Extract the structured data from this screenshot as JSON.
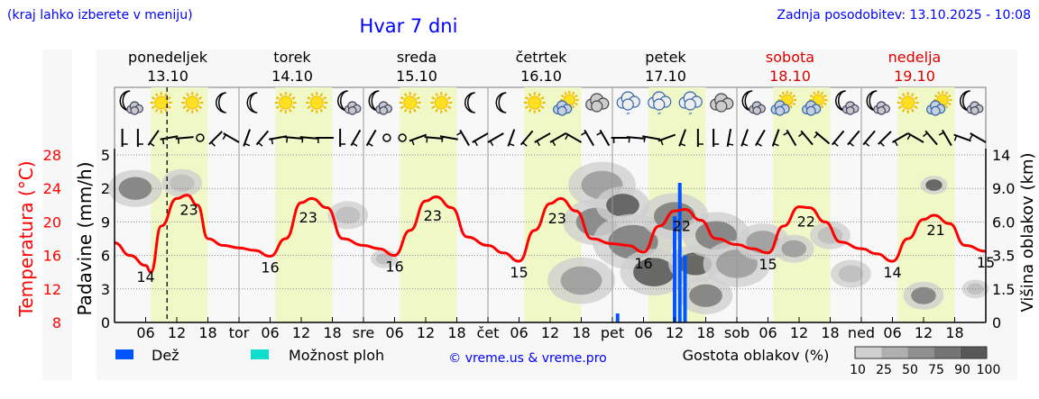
{
  "header": {
    "hint": "(kraj lahko izberete v meniju)",
    "title": "Hvar 7 dni",
    "updated": "Zadnja posodobitev: 13.10.2025 - 10:08"
  },
  "colors": {
    "temp": "#ff0000",
    "rain": "#0055ff",
    "showers": "#11ddcc",
    "link": "#0000ff",
    "day_band": "#f0f8c8",
    "weekend": "#dd0000"
  },
  "days": [
    {
      "name": "ponedeljek",
      "date": "13.10",
      "weekend": false
    },
    {
      "name": "torek",
      "date": "14.10",
      "weekend": false
    },
    {
      "name": "sreda",
      "date": "15.10",
      "weekend": false
    },
    {
      "name": "četrtek",
      "date": "16.10",
      "weekend": false
    },
    {
      "name": "petek",
      "date": "17.10",
      "weekend": false
    },
    {
      "name": "sobota",
      "date": "18.10",
      "weekend": true
    },
    {
      "name": "nedelja",
      "date": "19.10",
      "weekend": true
    }
  ],
  "chart_data": {
    "type": "line",
    "title": "Hvar 7 dni",
    "x_unit": "hours from Mon 13.10 00:00",
    "xlim": [
      0,
      168
    ],
    "now_hour": 10.13,
    "x_ticks": [
      "06",
      "12",
      "18",
      "tor",
      "06",
      "12",
      "18",
      "sre",
      "06",
      "12",
      "18",
      "čet",
      "06",
      "12",
      "18",
      "pet",
      "06",
      "12",
      "18",
      "sob",
      "06",
      "12",
      "18",
      "ned",
      "06",
      "12",
      "18"
    ],
    "daylight": [
      [
        7,
        18
      ],
      [
        31,
        42
      ],
      [
        55,
        66
      ],
      [
        79,
        90
      ],
      [
        103,
        114
      ],
      [
        127,
        138
      ],
      [
        151,
        162
      ]
    ],
    "temperature": {
      "label": "Temperatura (°C)",
      "ylim": [
        8,
        28
      ],
      "ticks": [
        "8",
        "12",
        "16",
        "20",
        "24",
        "28"
      ],
      "points": [
        [
          0,
          17.5
        ],
        [
          3,
          16
        ],
        [
          6,
          14.8
        ],
        [
          7,
          14
        ],
        [
          9,
          19.5
        ],
        [
          12,
          22.8
        ],
        [
          14,
          23.2
        ],
        [
          16,
          22
        ],
        [
          18,
          18
        ],
        [
          21,
          17.2
        ],
        [
          24,
          16.9
        ],
        [
          27,
          16.6
        ],
        [
          30,
          15.9
        ],
        [
          33,
          18
        ],
        [
          36,
          22.3
        ],
        [
          38,
          22.8
        ],
        [
          41,
          21.7
        ],
        [
          44,
          18
        ],
        [
          48,
          17.2
        ],
        [
          51,
          16.8
        ],
        [
          54,
          16
        ],
        [
          57,
          19
        ],
        [
          60,
          22.5
        ],
        [
          62,
          23
        ],
        [
          65,
          21.7
        ],
        [
          68,
          18.2
        ],
        [
          72,
          17.2
        ],
        [
          75,
          16.3
        ],
        [
          78,
          15.3
        ],
        [
          81,
          19
        ],
        [
          84,
          22.2
        ],
        [
          86,
          22.8
        ],
        [
          89,
          21.3
        ],
        [
          92,
          18
        ],
        [
          96,
          17.4
        ],
        [
          99,
          17.2
        ],
        [
          102,
          16.4
        ],
        [
          105,
          19.5
        ],
        [
          108,
          21.3
        ],
        [
          110,
          21.5
        ],
        [
          113,
          20.2
        ],
        [
          116,
          18
        ],
        [
          120,
          17.3
        ],
        [
          123,
          16.8
        ],
        [
          126,
          16.3
        ],
        [
          129,
          19.5
        ],
        [
          132,
          21.8
        ],
        [
          134,
          21.7
        ],
        [
          137,
          20
        ],
        [
          140,
          17.6
        ],
        [
          144,
          16.8
        ],
        [
          147,
          16.2
        ],
        [
          150,
          15.3
        ],
        [
          153,
          18
        ],
        [
          156,
          20.3
        ],
        [
          158,
          20.8
        ],
        [
          161,
          19.8
        ],
        [
          164,
          17.2
        ],
        [
          168,
          16.5
        ]
      ],
      "labels": [
        [
          6,
          "14"
        ],
        [
          14,
          "23"
        ],
        [
          30,
          "16"
        ],
        [
          37,
          "23"
        ],
        [
          54,
          "16"
        ],
        [
          61,
          "23"
        ],
        [
          78,
          "15"
        ],
        [
          85,
          "23"
        ],
        [
          102,
          "16"
        ],
        [
          109,
          "22"
        ],
        [
          126,
          "15"
        ],
        [
          133,
          "22"
        ],
        [
          150,
          "14"
        ],
        [
          158,
          "21"
        ],
        [
          168,
          "15"
        ]
      ]
    },
    "precipitation": {
      "label": "Padavine (mm/h)",
      "ylim": [
        0,
        15
      ],
      "ticks": [
        "0",
        "3",
        "6",
        "9",
        "2",
        "5"
      ],
      "bars": [
        [
          97,
          0.8
        ],
        [
          108,
          9.5
        ],
        [
          109,
          12.5
        ],
        [
          110,
          6
        ]
      ]
    },
    "clouds": {
      "label": "Višina oblakov (km)",
      "ticks": [
        "0",
        "1.5",
        "3.5",
        "6.0",
        "9.0",
        "14"
      ],
      "tick_values": [
        0,
        1.5,
        3.5,
        6.0,
        9.0,
        14
      ],
      "patches": [
        [
          4,
          9,
          75,
          4
        ],
        [
          13,
          9.8,
          25,
          3
        ],
        [
          45,
          6.6,
          25,
          3
        ],
        [
          52,
          3.3,
          25,
          2
        ],
        [
          94,
          9.5,
          50,
          5
        ],
        [
          93,
          6,
          70,
          5
        ],
        [
          98,
          7.5,
          90,
          4
        ],
        [
          100,
          4.5,
          75,
          6
        ],
        [
          104,
          2.5,
          90,
          5
        ],
        [
          108,
          6.5,
          75,
          5
        ],
        [
          112,
          3,
          90,
          4
        ],
        [
          116,
          5,
          75,
          5
        ],
        [
          114,
          1.2,
          75,
          4
        ],
        [
          90,
          2,
          50,
          5
        ],
        [
          120,
          3,
          50,
          5
        ],
        [
          125,
          4.5,
          50,
          4
        ],
        [
          131,
          4,
          50,
          3
        ],
        [
          138,
          5,
          25,
          3
        ],
        [
          142,
          2.4,
          25,
          3
        ],
        [
          158,
          9.5,
          90,
          2
        ],
        [
          156,
          1.2,
          75,
          3
        ],
        [
          166,
          1.5,
          25,
          2
        ]
      ]
    },
    "wind_dirs": [
      0,
      0,
      35,
      80,
      85,
      -1,
      45,
      120,
      20,
      40,
      80,
      95,
      95,
      90,
      0,
      30,
      30,
      -1,
      -1,
      70,
      95,
      100,
      150,
      60,
      60,
      20,
      40,
      60,
      60,
      120,
      150,
      150,
      90,
      95,
      100,
      70,
      20,
      0,
      0,
      10,
      20,
      30,
      20,
      150,
      140,
      130,
      40,
      40,
      40,
      45,
      60,
      120,
      140,
      150,
      110,
      120
    ],
    "icons": [
      "moon-cloud",
      "sun",
      "sun",
      "moon",
      "moon",
      "sun",
      "sun",
      "moon-cloud",
      "moon-cloud",
      "sun",
      "sun",
      "moon",
      "moon",
      "sun",
      "sun-cloud",
      "cloud",
      "cloud-rain",
      "cloud-rain",
      "cloud-rain",
      "cloud",
      "moon-cloud",
      "sun-cloud",
      "sun-cloud",
      "moon-cloud",
      "moon-cloud",
      "sun",
      "sun-cloud",
      "moon-cloud"
    ]
  },
  "legend": {
    "rain": "Dež",
    "showers": "Možnost ploh",
    "credit": "© vreme.us & vreme.pro",
    "cloud_density": "Gostota oblakov (%)",
    "scale": [
      "10",
      "25",
      "50",
      "75",
      "90",
      "100"
    ]
  }
}
